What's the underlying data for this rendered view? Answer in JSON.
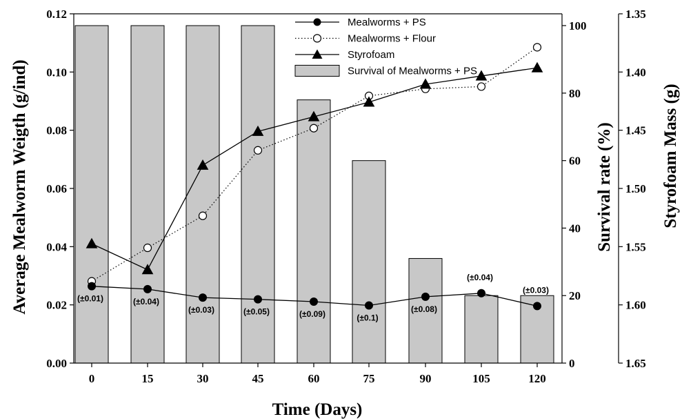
{
  "chart_data": {
    "type": "bar",
    "xlabel": "Time (Days)",
    "ylabel_left": "Average Mealworm Weigth (g/ind)",
    "ylabel_right1": "Survival rate (%)",
    "ylabel_right2": "Styrofoam Mass (g)",
    "x": [
      0,
      15,
      30,
      45,
      60,
      75,
      90,
      105,
      120
    ],
    "x_tick_labels": [
      "0",
      "15",
      "30",
      "45",
      "60",
      "75",
      "90",
      "105",
      "120"
    ],
    "y_left_ticks": [
      "0.00",
      "0.02",
      "0.04",
      "0.06",
      "0.08",
      "0.10",
      "0.12"
    ],
    "y_right1_ticks": [
      "0",
      "20",
      "40",
      "60",
      "80",
      "100"
    ],
    "y_right2_ticks": [
      "1.35",
      "1.40",
      "1.45",
      "1.50",
      "1.55",
      "1.60",
      "1.65"
    ],
    "ylim_left": [
      0,
      0.12
    ],
    "ylim_right1": [
      0,
      103.5
    ],
    "ylim_right2": [
      1.35,
      1.65
    ],
    "y_right2_reversed": true,
    "legend_position": "top-center",
    "series": [
      {
        "name": "Mealworms + PS",
        "axis": "left",
        "style": "solid-line-filled-circle",
        "values": [
          0.0264,
          0.0254,
          0.0225,
          0.0219,
          0.0211,
          0.0198,
          0.0228,
          0.024,
          0.0196
        ],
        "error_labels": [
          "(±0.01)",
          "(±0.04)",
          "(±0.03)",
          "(±0.05)",
          "(±0.09)",
          "(±0.1)",
          "(±0.08)",
          "(±0.04)",
          "(±0.03)"
        ]
      },
      {
        "name": "Mealworms + Flour",
        "axis": "left",
        "style": "dotted-line-open-circle",
        "values": [
          0.0281,
          0.0396,
          0.0506,
          0.0731,
          0.0807,
          0.0918,
          0.0942,
          0.095,
          0.1085
        ]
      },
      {
        "name": "Styrofoam",
        "axis": "right2",
        "style": "solid-line-filled-triangle",
        "values": [
          1.5475,
          1.5698,
          1.4801,
          1.451,
          1.4384,
          1.4259,
          1.4105,
          1.4034,
          1.3964
        ]
      },
      {
        "name": "Survival of Mealworms + PS",
        "axis": "right1",
        "style": "gray-bar",
        "values": [
          100,
          100,
          100,
          100,
          78,
          60,
          31,
          20,
          20
        ]
      }
    ],
    "colors": {
      "bar_fill": "#c8c8c8",
      "bar_stroke": "#000000",
      "line": "#000000"
    }
  }
}
